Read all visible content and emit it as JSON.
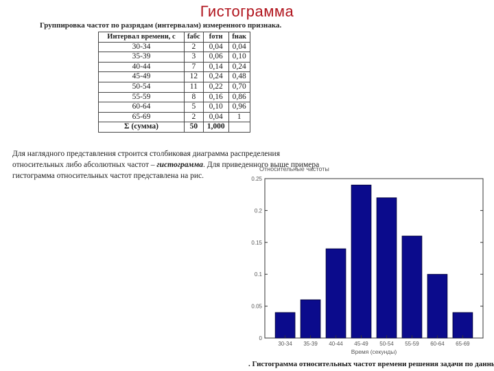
{
  "slide": {
    "title": "Гистограмма"
  },
  "table_caption": "Группировка частот по разрядам (интервалам) измеренного признака.",
  "table": {
    "headers": [
      "Интервал времени, с",
      "fабс",
      "fотн",
      "fнак"
    ],
    "rows": [
      [
        "30-34",
        "2",
        "0,04",
        "0,04"
      ],
      [
        "35-39",
        "3",
        "0,06",
        "0,10"
      ],
      [
        "40-44",
        "7",
        "0,14",
        "0,24"
      ],
      [
        "45-49",
        "12",
        "0,24",
        "0,48"
      ],
      [
        "50-54",
        "11",
        "0,22",
        "0,70"
      ],
      [
        "55-59",
        "8",
        "0,16",
        "0,86"
      ],
      [
        "60-64",
        "5",
        "0,10",
        "0,96"
      ],
      [
        "65-69",
        "2",
        "0,04",
        "1"
      ]
    ],
    "sum_row": [
      "Σ (сумма)",
      "50",
      "1,000",
      ""
    ]
  },
  "paragraph": {
    "before": "Для наглядного представления строится столбиковая диаграмма распределения относительных либо абсолютных частот – ",
    "emphasis": "гистограмма",
    "after": ". Для приведенного выше примера гистограмма относительных частот представлена на рис."
  },
  "chart_data": {
    "type": "bar",
    "title": "Относительные частоты",
    "xlabel": "Время (секунды)",
    "ylabel": "",
    "categories": [
      "30-34",
      "35-39",
      "40-44",
      "45-49",
      "50-54",
      "55-59",
      "60-64",
      "65-69"
    ],
    "values": [
      0.04,
      0.06,
      0.14,
      0.24,
      0.22,
      0.16,
      0.1,
      0.04
    ],
    "ylim": [
      0,
      0.25
    ],
    "yticks": [
      "0",
      "0.05",
      "0.1",
      "0.15",
      "0.2",
      "0.25"
    ],
    "bar_color": "#0b0b8c",
    "grid": false
  },
  "figure_caption": ". Гистограмма относительных частот времени решения задачи по данным"
}
